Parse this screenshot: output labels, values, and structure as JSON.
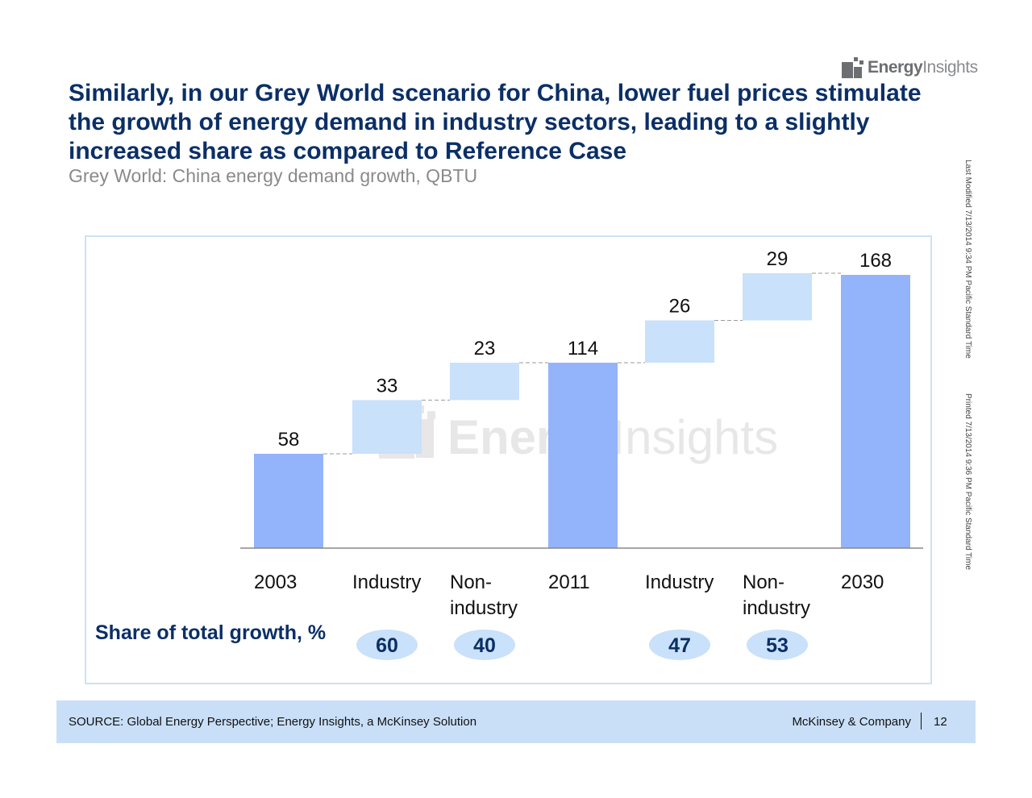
{
  "logo": {
    "brand_bold": "Energy",
    "brand_light": "Insights"
  },
  "title": "Similarly, in our Grey World scenario for China, lower fuel prices stimulate the growth of energy demand in industry sectors, leading to a slightly increased share as compared to Reference Case",
  "subtitle": "Grey World: China energy demand growth, QBTU",
  "side_notes": {
    "last_modified": "Last Modified 7/13/2014 9:34 PM Pacific Standard Time",
    "printed": "Printed 7/13/2014 9:36 PM Pacific Standard Time"
  },
  "watermark": {
    "bold": "Energy",
    "light": "Insights"
  },
  "share_label": "Share of total growth, %",
  "colors": {
    "total": "#93b3fb",
    "increment": "#c9e1fa",
    "badge": "#c9e1fa",
    "title": "#0b2f66"
  },
  "chart_data": {
    "type": "bar",
    "subtype": "waterfall",
    "title": "Grey World: China energy demand growth, QBTU",
    "categories": [
      [
        "2003"
      ],
      [
        "Industry"
      ],
      [
        "Non-",
        "industry"
      ],
      [
        "2011"
      ],
      [
        "Industry"
      ],
      [
        "Non-",
        "industry"
      ],
      [
        "2030"
      ]
    ],
    "values": [
      58,
      33,
      23,
      114,
      26,
      29,
      168
    ],
    "bar_kind": [
      "total",
      "increment",
      "increment",
      "total",
      "increment",
      "increment",
      "total"
    ],
    "value_labels": [
      "58",
      "33",
      "23",
      "114",
      "26",
      "29",
      "168"
    ],
    "share_of_total_growth": [
      null,
      60,
      40,
      null,
      47,
      53,
      null
    ],
    "ylim": [
      0,
      168
    ]
  },
  "footer": {
    "source": "SOURCE: Global Energy Perspective; Energy Insights, a McKinsey Solution",
    "company": "McKinsey & Company",
    "page": "12"
  }
}
